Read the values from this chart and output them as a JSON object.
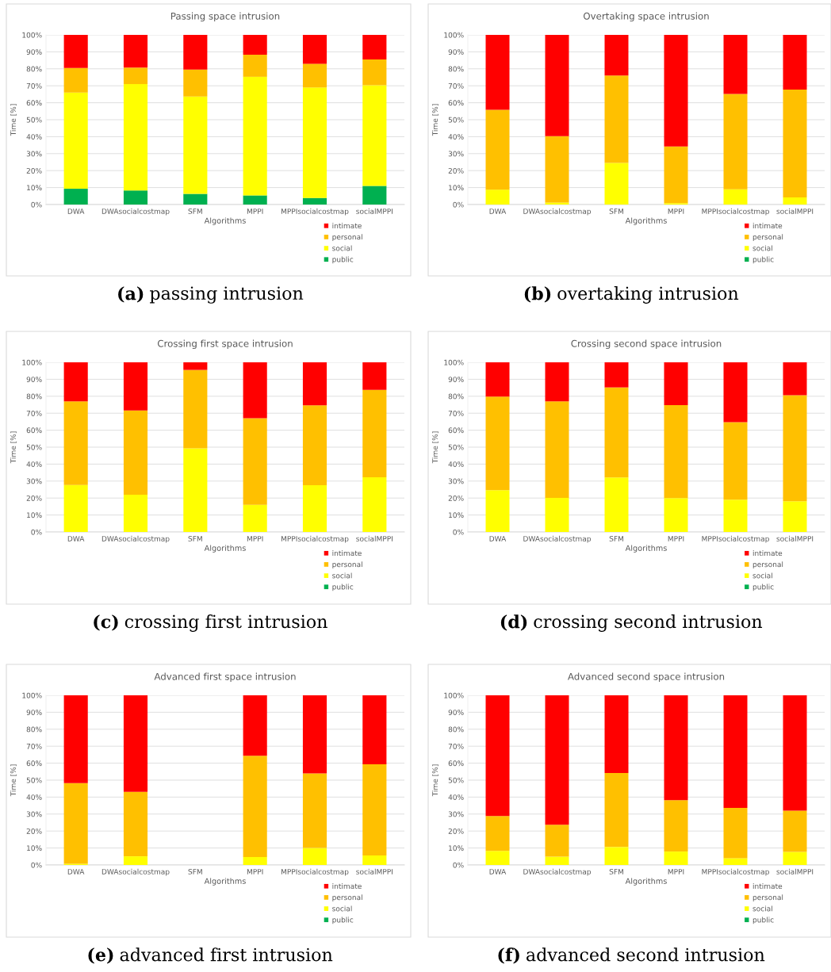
{
  "chart_data": [
    {
      "type": "bar",
      "stacked": true,
      "title": "Passing space intrusion",
      "xlabel": "Algorithms",
      "ylabel": "Time [%]",
      "categories": [
        "DWA",
        "DWAsocialcostmap",
        "SFM",
        "MPPI",
        "MPPIsocialcostmap",
        "socialMPPI"
      ],
      "ylim": [
        0,
        100
      ],
      "yticks": [
        {
          "value": 0,
          "label": "0%"
        },
        {
          "value": 10,
          "label": "10%"
        },
        {
          "value": 20,
          "label": "20%"
        },
        {
          "value": 30,
          "label": "30%"
        },
        {
          "value": 40,
          "label": "40%"
        },
        {
          "value": 50,
          "label": "50%"
        },
        {
          "value": 60,
          "label": "60%"
        },
        {
          "value": 70,
          "label": "70%"
        },
        {
          "value": 80,
          "label": "80%"
        },
        {
          "value": 90,
          "label": "90%"
        },
        {
          "value": 100,
          "label": "100%"
        }
      ],
      "grid": "y",
      "legend": "bottom",
      "annotations": [
        "(a) passing intrusion"
      ],
      "series": [
        {
          "name": "public",
          "color": "#00b050",
          "values": [
            9.3,
            8.3,
            6.3,
            5.4,
            3.9,
            11
          ]
        },
        {
          "name": "social",
          "color": "#ffff00",
          "values": [
            56.7,
            62.7,
            57.4,
            69.9,
            65.1,
            59.3
          ]
        },
        {
          "name": "personal",
          "color": "#ffc000",
          "values": [
            14.5,
            9.7,
            15.8,
            13,
            14,
            15.2
          ]
        },
        {
          "name": "intimate",
          "color": "#ff0000",
          "values": [
            19.5,
            19.3,
            20.5,
            11.7,
            17,
            14.5
          ]
        }
      ]
    },
    {
      "type": "bar",
      "stacked": true,
      "title": "Overtaking space intrusion",
      "xlabel": "Algorithms",
      "ylabel": "Time [%]",
      "categories": [
        "DWA",
        "DWAsocialcostmap",
        "SFM",
        "MPPI",
        "MPPIsocialcostmap",
        "socialMPPI"
      ],
      "ylim": [
        0,
        100
      ],
      "yticks": [
        {
          "value": 0,
          "label": "0%"
        },
        {
          "value": 10,
          "label": "10%"
        },
        {
          "value": 20,
          "label": "20%"
        },
        {
          "value": 30,
          "label": "30%"
        },
        {
          "value": 40,
          "label": "40%"
        },
        {
          "value": 50,
          "label": "50%"
        },
        {
          "value": 60,
          "label": "60%"
        },
        {
          "value": 70,
          "label": "70%"
        },
        {
          "value": 80,
          "label": "80%"
        },
        {
          "value": 90,
          "label": "90%"
        },
        {
          "value": 100,
          "label": "100%"
        }
      ],
      "grid": "y",
      "legend": "bottom",
      "annotations": [
        "(b) overtaking intrusion"
      ],
      "series": [
        {
          "name": "public",
          "color": "#00b050",
          "values": [
            0,
            0,
            0,
            0,
            0,
            0
          ]
        },
        {
          "name": "social",
          "color": "#ffff00",
          "values": [
            8.8,
            1.2,
            24.5,
            0.8,
            9,
            4.2
          ]
        },
        {
          "name": "personal",
          "color": "#ffc000",
          "values": [
            47,
            39.1,
            51.5,
            33.4,
            56.2,
            63.6
          ]
        },
        {
          "name": "intimate",
          "color": "#ff0000",
          "values": [
            44.2,
            59.7,
            24,
            65.8,
            34.8,
            32.2
          ]
        }
      ]
    },
    {
      "type": "bar",
      "stacked": true,
      "title": "Crossing first space intrusion",
      "xlabel": "Algorithms",
      "ylabel": "Time [%]",
      "categories": [
        "DWA",
        "DWAsocialcostmap",
        "SFM",
        "MPPI",
        "MPPIsocialcostmap",
        "socialMPPI"
      ],
      "ylim": [
        0,
        100
      ],
      "yticks": [
        {
          "value": 0,
          "label": "0%"
        },
        {
          "value": 10,
          "label": "10%"
        },
        {
          "value": 20,
          "label": "20%"
        },
        {
          "value": 30,
          "label": "30%"
        },
        {
          "value": 40,
          "label": "40%"
        },
        {
          "value": 50,
          "label": "50%"
        },
        {
          "value": 60,
          "label": "60%"
        },
        {
          "value": 70,
          "label": "70%"
        },
        {
          "value": 80,
          "label": "80%"
        },
        {
          "value": 90,
          "label": "90%"
        },
        {
          "value": 100,
          "label": "100%"
        }
      ],
      "grid": "y",
      "legend": "bottom",
      "annotations": [
        "(c) crossing first intrusion"
      ],
      "series": [
        {
          "name": "public",
          "color": "#00b050",
          "values": [
            0,
            0,
            0,
            0,
            0,
            0
          ]
        },
        {
          "name": "social",
          "color": "#ffff00",
          "values": [
            27.7,
            22,
            49.3,
            16,
            27.6,
            32.3
          ]
        },
        {
          "name": "personal",
          "color": "#ffc000",
          "values": [
            49.3,
            49.6,
            46.2,
            51,
            47,
            51.5
          ]
        },
        {
          "name": "intimate",
          "color": "#ff0000",
          "values": [
            23,
            28.4,
            4.5,
            33,
            25.4,
            16.2
          ]
        }
      ]
    },
    {
      "type": "bar",
      "stacked": true,
      "title": "Crossing second space intrusion",
      "xlabel": "Algorithms",
      "ylabel": "Time [%]",
      "categories": [
        "DWA",
        "DWAsocialcostmap",
        "SFM",
        "MPPI",
        "MPPIsocialcostmap",
        "socialMPPI"
      ],
      "ylim": [
        0,
        100
      ],
      "yticks": [
        {
          "value": 0,
          "label": "0%"
        },
        {
          "value": 10,
          "label": "10%"
        },
        {
          "value": 20,
          "label": "20%"
        },
        {
          "value": 30,
          "label": "30%"
        },
        {
          "value": 40,
          "label": "40%"
        },
        {
          "value": 50,
          "label": "50%"
        },
        {
          "value": 60,
          "label": "60%"
        },
        {
          "value": 70,
          "label": "70%"
        },
        {
          "value": 80,
          "label": "80%"
        },
        {
          "value": 90,
          "label": "90%"
        },
        {
          "value": 100,
          "label": "100%"
        }
      ],
      "grid": "y",
      "legend": "bottom",
      "annotations": [
        "(d) crossing second intrusion"
      ],
      "series": [
        {
          "name": "public",
          "color": "#00b050",
          "values": [
            0,
            0,
            0,
            0,
            0,
            0
          ]
        },
        {
          "name": "social",
          "color": "#ffff00",
          "values": [
            24.7,
            20.1,
            32.1,
            20,
            19.1,
            18.1
          ]
        },
        {
          "name": "personal",
          "color": "#ffc000",
          "values": [
            55.1,
            56.9,
            53.1,
            54.8,
            45.6,
            62.5
          ]
        },
        {
          "name": "intimate",
          "color": "#ff0000",
          "values": [
            20.2,
            23,
            14.8,
            25.2,
            35.3,
            19.4
          ]
        }
      ]
    },
    {
      "type": "bar",
      "stacked": true,
      "title": "Advanced first space intrusion",
      "xlabel": "Algorithms",
      "ylabel": "Time [%]",
      "categories": [
        "DWA",
        "DWAsocialcostmap",
        "SFM",
        "MPPI",
        "MPPIsocialcostmap",
        "socialMPPI"
      ],
      "ylim": [
        0,
        100
      ],
      "yticks": [
        {
          "value": 0,
          "label": "0%"
        },
        {
          "value": 10,
          "label": "10%"
        },
        {
          "value": 20,
          "label": "20%"
        },
        {
          "value": 30,
          "label": "30%"
        },
        {
          "value": 40,
          "label": "40%"
        },
        {
          "value": 50,
          "label": "50%"
        },
        {
          "value": 60,
          "label": "60%"
        },
        {
          "value": 70,
          "label": "70%"
        },
        {
          "value": 80,
          "label": "80%"
        },
        {
          "value": 90,
          "label": "90%"
        },
        {
          "value": 100,
          "label": "100%"
        }
      ],
      "grid": "y",
      "legend": "bottom",
      "annotations": [
        "(e) advanced first intrusion"
      ],
      "series": [
        {
          "name": "public",
          "color": "#00b050",
          "values": [
            0,
            0,
            null,
            0,
            0,
            0
          ]
        },
        {
          "name": "social",
          "color": "#ffff00",
          "values": [
            0.7,
            5.1,
            null,
            4.7,
            10,
            5.6
          ]
        },
        {
          "name": "personal",
          "color": "#ffc000",
          "values": [
            47.6,
            38,
            null,
            59.7,
            44,
            53.7
          ]
        },
        {
          "name": "intimate",
          "color": "#ff0000",
          "values": [
            51.7,
            56.9,
            null,
            35.6,
            46,
            40.7
          ]
        }
      ]
    },
    {
      "type": "bar",
      "stacked": true,
      "title": "Advanced second space intrusion",
      "xlabel": "Algorithms",
      "ylabel": "Time [%]",
      "categories": [
        "DWA",
        "DWAsocialcostmap",
        "SFM",
        "MPPI",
        "MPPIsocialcostmap",
        "socialMPPI"
      ],
      "ylim": [
        0,
        100
      ],
      "yticks": [
        {
          "value": 0,
          "label": "0%"
        },
        {
          "value": 10,
          "label": "10%"
        },
        {
          "value": 20,
          "label": "20%"
        },
        {
          "value": 30,
          "label": "30%"
        },
        {
          "value": 40,
          "label": "40%"
        },
        {
          "value": 50,
          "label": "50%"
        },
        {
          "value": 60,
          "label": "60%"
        },
        {
          "value": 70,
          "label": "70%"
        },
        {
          "value": 80,
          "label": "80%"
        },
        {
          "value": 90,
          "label": "90%"
        },
        {
          "value": 100,
          "label": "100%"
        }
      ],
      "grid": "y",
      "legend": "bottom",
      "annotations": [
        "(f) advanced second intrusion"
      ],
      "series": [
        {
          "name": "public",
          "color": "#00b050",
          "values": [
            0,
            0,
            0,
            0,
            0,
            0
          ]
        },
        {
          "name": "social",
          "color": "#ffff00",
          "values": [
            8.3,
            4.9,
            10.6,
            7.9,
            4,
            7.7
          ]
        },
        {
          "name": "personal",
          "color": "#ffc000",
          "values": [
            20.5,
            18.8,
            43.6,
            30.3,
            29.7,
            24.3
          ]
        },
        {
          "name": "intimate",
          "color": "#ff0000",
          "values": [
            71.2,
            76.3,
            45.8,
            61.8,
            66.3,
            68
          ]
        }
      ]
    }
  ]
}
